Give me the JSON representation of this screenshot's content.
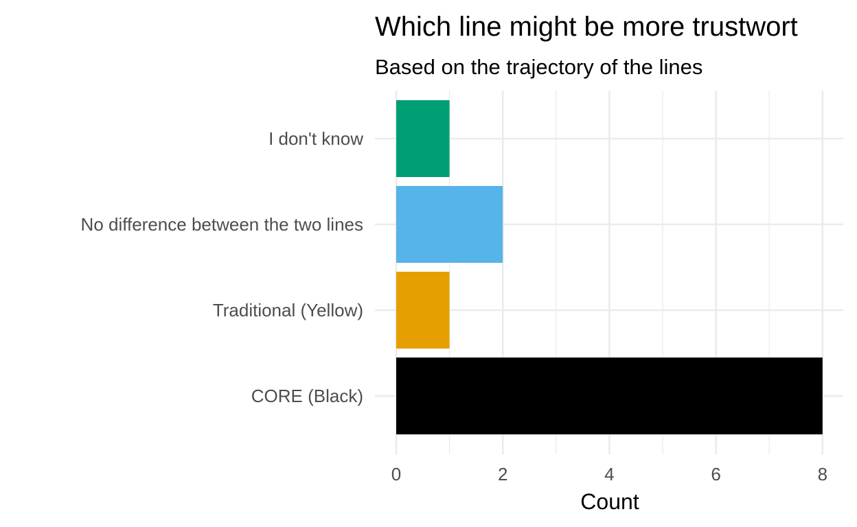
{
  "chart_data": {
    "type": "bar",
    "orientation": "horizontal",
    "title": "Which line might be more trustwort",
    "subtitle": "Based on the trajectory of the lines",
    "xlabel": "Count",
    "ylabel": "",
    "xlim": [
      0,
      8.4
    ],
    "x_ticks": [
      0,
      2,
      4,
      6,
      8
    ],
    "x_tick_labels": [
      "0",
      "2",
      "4",
      "6",
      "8"
    ],
    "grid": true,
    "legend": "none",
    "categories": [
      "I don't know",
      "No difference between the two lines",
      "Traditional (Yellow)",
      "CORE (Black)"
    ],
    "values": [
      1,
      2,
      1,
      8
    ],
    "colors": [
      "#009E73",
      "#56B4E9",
      "#E69F00",
      "#000000"
    ]
  }
}
